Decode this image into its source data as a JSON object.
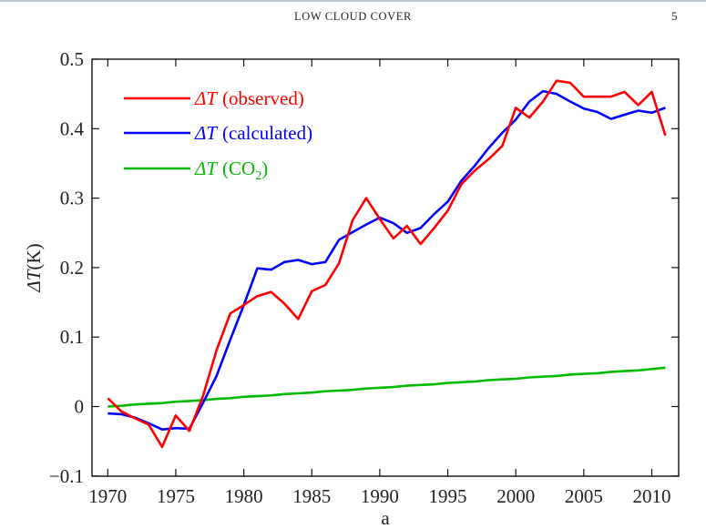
{
  "header": {
    "running_title": "LOW CLOUD COVER",
    "page_number": "5"
  },
  "chart_data": {
    "type": "line",
    "title": "",
    "xlabel": "a",
    "ylabel": "ΔT(K)",
    "ylabel_parts": {
      "symbol": "ΔT",
      "unit": "(K)"
    },
    "xlim": [
      1969,
      2012
    ],
    "ylim": [
      -0.1,
      0.5
    ],
    "xticks": [
      1970,
      1975,
      1980,
      1985,
      1990,
      1995,
      2000,
      2005,
      2010
    ],
    "xtick_labels": [
      "1970",
      "1975",
      "1980",
      "1985",
      "1990",
      "1995",
      "2000",
      "2005",
      "2010"
    ],
    "yticks": [
      -0.1,
      0,
      0.1,
      0.2,
      0.3,
      0.4,
      0.5
    ],
    "ytick_labels": [
      "−0.1",
      "0",
      "0.1",
      "0.2",
      "0.3",
      "0.4",
      "0.5"
    ],
    "grid": false,
    "legend_position": "top-left",
    "x": [
      1970,
      1971,
      1972,
      1973,
      1974,
      1975,
      1976,
      1977,
      1978,
      1979,
      1980,
      1981,
      1982,
      1983,
      1984,
      1985,
      1986,
      1987,
      1988,
      1989,
      1990,
      1991,
      1992,
      1993,
      1994,
      1995,
      1996,
      1997,
      1998,
      1999,
      2000,
      2001,
      2002,
      2003,
      2004,
      2005,
      2006,
      2007,
      2008,
      2009,
      2010,
      2011
    ],
    "series": [
      {
        "name": "ΔT (observed)",
        "symbol": "ΔT",
        "desc": "(observed)",
        "color": "#ff0000",
        "values": [
          0.012,
          -0.007,
          -0.017,
          -0.026,
          -0.058,
          -0.013,
          -0.035,
          0.015,
          0.081,
          0.134,
          0.146,
          0.159,
          0.165,
          0.148,
          0.126,
          0.166,
          0.175,
          0.206,
          0.268,
          0.3,
          0.27,
          0.242,
          0.26,
          0.234,
          0.257,
          0.282,
          0.32,
          0.34,
          0.356,
          0.375,
          0.43,
          0.416,
          0.439,
          0.469,
          0.466,
          0.446,
          0.446,
          0.446,
          0.453,
          0.434,
          0.453,
          0.39
        ]
      },
      {
        "name": "ΔT (calculated)",
        "symbol": "ΔT",
        "desc": "(calculated)",
        "color": "#0000ff",
        "values": [
          -0.01,
          -0.011,
          -0.016,
          -0.024,
          -0.033,
          -0.031,
          -0.032,
          0.005,
          0.044,
          0.096,
          0.146,
          0.199,
          0.197,
          0.208,
          0.211,
          0.205,
          0.208,
          0.24,
          0.251,
          0.262,
          0.272,
          0.264,
          0.25,
          0.257,
          0.277,
          0.295,
          0.325,
          0.347,
          0.372,
          0.394,
          0.413,
          0.439,
          0.454,
          0.45,
          0.439,
          0.429,
          0.424,
          0.414,
          0.42,
          0.426,
          0.423,
          0.43
        ]
      },
      {
        "name": "ΔT (CO2)",
        "symbol": "ΔT",
        "desc": "(CO",
        "sub": "2",
        "desc_end": ")",
        "color": "#00bb00",
        "values": [
          0.0,
          0.001,
          0.003,
          0.004,
          0.005,
          0.007,
          0.008,
          0.009,
          0.011,
          0.012,
          0.014,
          0.015,
          0.016,
          0.018,
          0.019,
          0.02,
          0.022,
          0.023,
          0.024,
          0.026,
          0.027,
          0.028,
          0.03,
          0.031,
          0.032,
          0.034,
          0.035,
          0.036,
          0.038,
          0.039,
          0.04,
          0.042,
          0.043,
          0.044,
          0.046,
          0.047,
          0.048,
          0.05,
          0.051,
          0.052,
          0.054,
          0.056
        ]
      }
    ]
  }
}
